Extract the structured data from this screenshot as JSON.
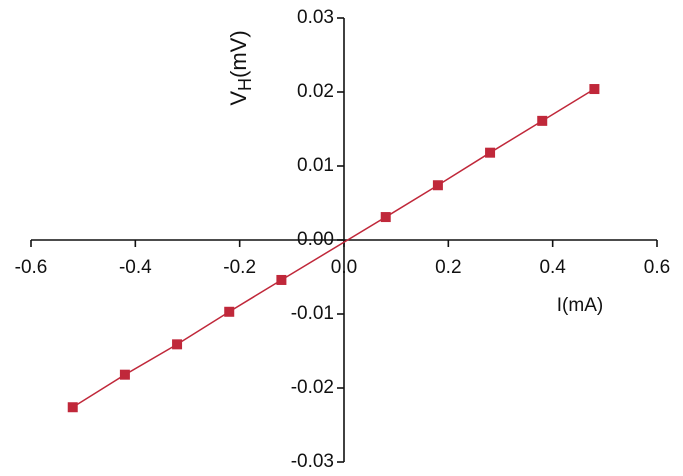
{
  "chart_data": {
    "type": "line",
    "xlabel": "I(mA)",
    "ylabel": "V",
    "ylabel_sub": "H",
    "ylabel_unit": "(mV)",
    "x": [
      -0.52,
      -0.42,
      -0.32,
      -0.22,
      -0.12,
      0.08,
      0.18,
      0.28,
      0.38,
      0.48
    ],
    "series": [
      {
        "color": "#c0283a",
        "values": [
          -0.0226,
          -0.0182,
          -0.0141,
          -0.0097,
          -0.0054,
          0.0031,
          0.0074,
          0.0118,
          0.0161,
          0.0204
        ]
      }
    ],
    "xlim": [
      -0.6,
      0.6
    ],
    "xticks": [
      -0.6,
      -0.4,
      -0.2,
      {
        "value": 0,
        "label": "0.0"
      },
      0.2,
      0.4,
      0.6
    ],
    "ylim": [
      -0.03,
      0.03
    ],
    "yticks": [
      -0.03,
      -0.02,
      -0.01,
      {
        "value": 0,
        "label": "0.00"
      },
      0.01,
      0.02,
      0.03
    ]
  }
}
